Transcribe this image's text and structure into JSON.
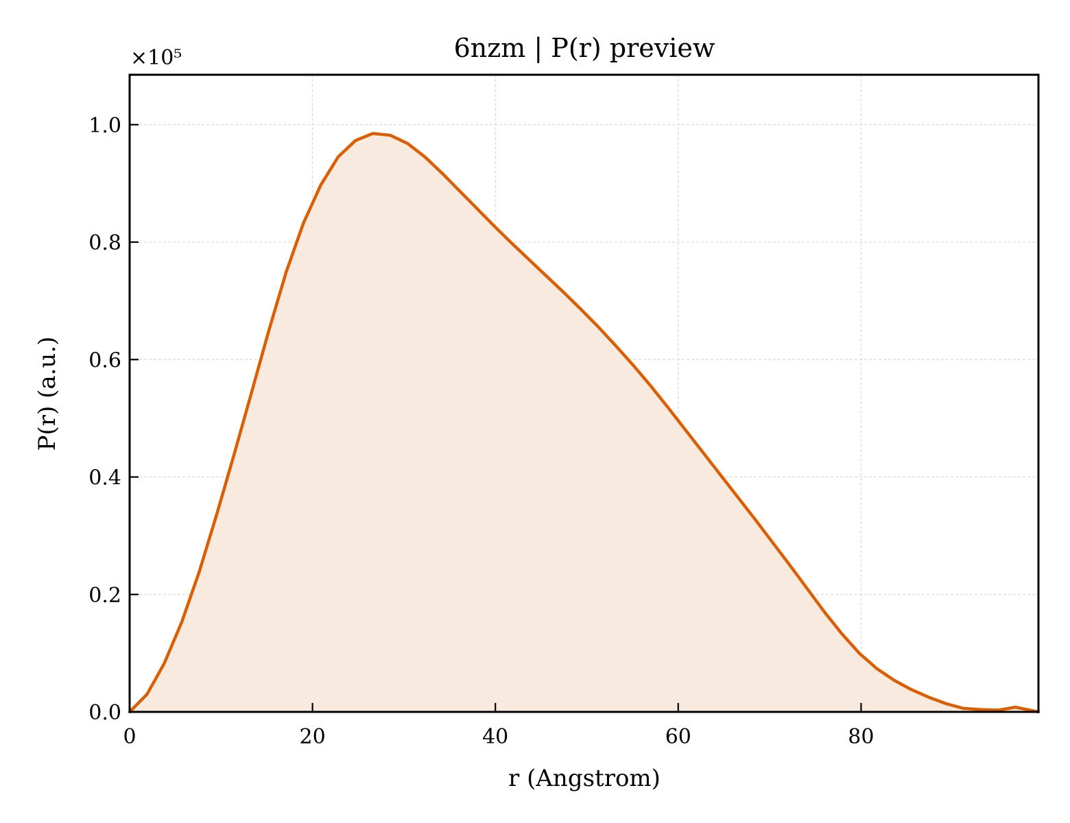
{
  "chart_data": {
    "type": "area",
    "title": "6nzm | P(r) preview",
    "xlabel": "r (Angstrom)",
    "ylabel": "P(r) (a.u.)",
    "y_offset_label": "×10⁵",
    "y_multiplier": 100000,
    "xlim": [
      0,
      99.4
    ],
    "ylim": [
      0,
      1.085
    ],
    "x_ticks": [
      0,
      20,
      40,
      60,
      80
    ],
    "x_tick_labels": [
      "0",
      "20",
      "40",
      "60",
      "80"
    ],
    "y_ticks": [
      0,
      0.2,
      0.4,
      0.6,
      0.8,
      1.0
    ],
    "y_tick_labels": [
      "0.0",
      "0.2",
      "0.4",
      "0.6",
      "0.8",
      "1.0"
    ],
    "grid": true,
    "legend": "none",
    "series": [
      {
        "line_color": "#d95f02",
        "fill_color": "#f8eadf",
        "x": [
          0,
          1.9,
          3.8,
          5.7,
          7.6,
          9.5,
          11.4,
          13.3,
          15.2,
          17.1,
          19.0,
          20.9,
          22.8,
          24.7,
          26.6,
          28.5,
          30.4,
          32.3,
          34.2,
          36.1,
          38.0,
          39.9,
          41.8,
          43.7,
          45.6,
          47.5,
          49.4,
          51.3,
          53.2,
          55.1,
          57.0,
          58.9,
          60.8,
          62.7,
          64.6,
          66.5,
          68.4,
          70.3,
          72.2,
          74.1,
          76.0,
          77.9,
          79.8,
          81.7,
          83.6,
          85.5,
          87.4,
          89.3,
          91.2,
          93.1,
          95.0,
          96.9,
          98.8,
          99.4
        ],
        "y": [
          0.0,
          0.03,
          0.083,
          0.153,
          0.238,
          0.335,
          0.437,
          0.542,
          0.648,
          0.748,
          0.832,
          0.897,
          0.945,
          0.973,
          0.985,
          0.982,
          0.968,
          0.945,
          0.917,
          0.887,
          0.857,
          0.827,
          0.798,
          0.77,
          0.742,
          0.714,
          0.685,
          0.655,
          0.623,
          0.59,
          0.555,
          0.518,
          0.48,
          0.442,
          0.404,
          0.366,
          0.328,
          0.289,
          0.25,
          0.21,
          0.17,
          0.133,
          0.1,
          0.074,
          0.054,
          0.038,
          0.025,
          0.014,
          0.006,
          0.004,
          0.003,
          0.008,
          0.002,
          0.0
        ]
      }
    ]
  }
}
